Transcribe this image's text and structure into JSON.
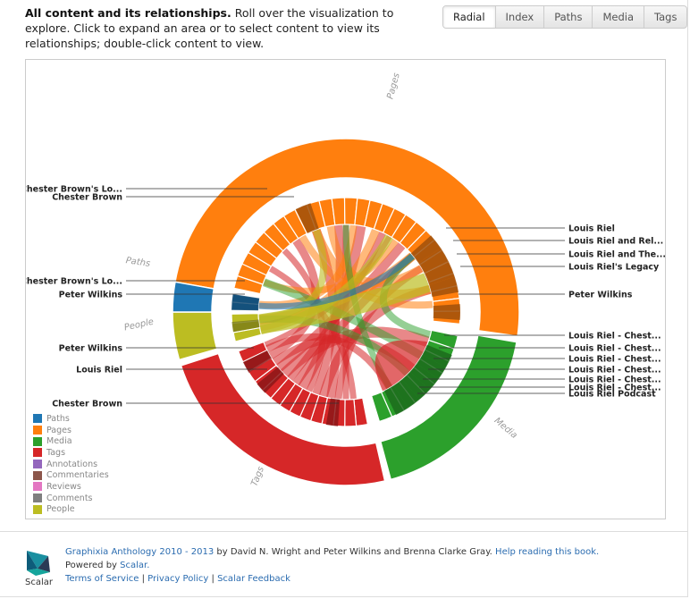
{
  "intro": {
    "title": "All content and its relationships.",
    "text": "Roll over the visualization to explore. Click to expand an area or to select content to view its relationships; double-click content to view."
  },
  "tabs": [
    {
      "label": "Radial",
      "active": true
    },
    {
      "label": "Index",
      "active": false
    },
    {
      "label": "Paths",
      "active": false
    },
    {
      "label": "Media",
      "active": false
    },
    {
      "label": "Tags",
      "active": false
    }
  ],
  "colors": {
    "paths": "#1f77b4",
    "pages": "#ff7f0e",
    "media": "#2ca02c",
    "tags": "#d62728",
    "annotations": "#9467bd",
    "commentaries": "#8c564b",
    "reviews": "#e377c2",
    "comments": "#7f7f7f",
    "people": "#bcbd22"
  },
  "ring_labels": {
    "pages": "Pages",
    "paths": "Paths",
    "people": "People",
    "media": "Media",
    "tags": "Tags"
  },
  "callouts_left": [
    "Chester Brown's Lo...",
    "Chester Brown",
    "Chester Brown's Lo...",
    "Peter Wilkins",
    "Peter Wilkins",
    "Louis Riel",
    "Chester Brown"
  ],
  "callouts_right": [
    "Louis Riel",
    "Louis Riel and Rel...",
    "Louis Riel and The...",
    "Louis Riel's Legacy",
    "Peter Wilkins",
    "Louis Riel - Chest...",
    "Louis Riel - Chest...",
    "Louis Riel - Chest...",
    "Louis Riel - Chest...",
    "Louis Riel - Chest...",
    "Louis Riel - Chest...",
    "Louis Riel Podcast"
  ],
  "legend": [
    {
      "label": "Paths",
      "color": "#1f77b4"
    },
    {
      "label": "Pages",
      "color": "#ff7f0e"
    },
    {
      "label": "Media",
      "color": "#2ca02c"
    },
    {
      "label": "Tags",
      "color": "#d62728"
    },
    {
      "label": "Annotations",
      "color": "#9467bd"
    },
    {
      "label": "Commentaries",
      "color": "#8c564b"
    },
    {
      "label": "Reviews",
      "color": "#e377c2"
    },
    {
      "label": "Comments",
      "color": "#7f7f7f"
    },
    {
      "label": "People",
      "color": "#bcbd22"
    }
  ],
  "footer": {
    "book_title": "Graphixia Anthology 2010 - 2013",
    "by": "by David N. Wright and Peter Wilkins and Brenna Clarke Gray.",
    "help": "Help reading this book.",
    "powered": "Powered by",
    "scalar": "Scalar.",
    "links": [
      "Terms of Service",
      "Privacy Policy",
      "Scalar Feedback"
    ],
    "separator": "|",
    "logo_label": "Scalar"
  }
}
